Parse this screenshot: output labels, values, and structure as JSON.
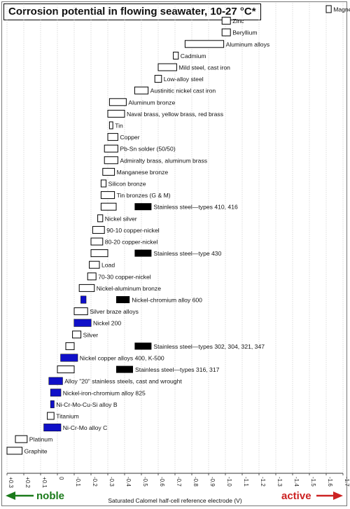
{
  "chart_data": {
    "type": "range-bar",
    "title": "Corrosion potential in flowing seawater, 10-27 °C*",
    "xlabel": "Saturated Calomel half-cell reference electrode (V)",
    "xlim": [
      0.3,
      -1.7
    ],
    "xticks": [
      "+0.3",
      "+0.2",
      "+0.1",
      "0",
      "-0.1",
      "-0.2",
      "-0.3",
      "-0.4",
      "-0.5",
      "-0.6",
      "-0.7",
      "-0.8",
      "-0.9",
      "-1.0",
      "-1.1",
      "-1.2",
      "-1.3",
      "-1.4",
      "-1.5",
      "-1.6",
      "-1.7"
    ],
    "direction_labels": {
      "noble": "noble",
      "active": "active"
    },
    "colors": {
      "passive_pitting": "#1010c8",
      "active_stainless": "#000000",
      "noble_arrow": "#1a7a1a",
      "active_arrow": "#cc2222",
      "outline": "#000000"
    },
    "series": [
      {
        "label": "Magnesium",
        "range": [
          -1.6,
          -1.63
        ]
      },
      {
        "label": "Zinc",
        "range": [
          -0.98,
          -1.03
        ]
      },
      {
        "label": "Beryllium",
        "range": [
          -0.98,
          -1.03
        ]
      },
      {
        "label": "Aluminum alloys",
        "range": [
          -0.76,
          -0.99
        ]
      },
      {
        "label": "Cadmium",
        "range": [
          -0.69,
          -0.72
        ]
      },
      {
        "label": "Mild steel, cast iron",
        "range": [
          -0.6,
          -0.71
        ]
      },
      {
        "label": "Low-alloy steel",
        "range": [
          -0.58,
          -0.62
        ]
      },
      {
        "label": "Austinitic nickel cast iron",
        "range": [
          -0.46,
          -0.54
        ]
      },
      {
        "label": "Aluminum bronze",
        "range": [
          -0.31,
          -0.41
        ]
      },
      {
        "label": "Naval brass, yellow brass, red brass",
        "range": [
          -0.3,
          -0.4
        ]
      },
      {
        "label": "Tin",
        "range": [
          -0.31,
          -0.33
        ]
      },
      {
        "label": "Copper",
        "range": [
          -0.3,
          -0.36
        ]
      },
      {
        "label": "Pb-Sn solder (50/50)",
        "range": [
          -0.28,
          -0.36
        ]
      },
      {
        "label": "Admiralty brass, aluminum brass",
        "range": [
          -0.28,
          -0.36
        ]
      },
      {
        "label": "Manganese bronze",
        "range": [
          -0.27,
          -0.34
        ]
      },
      {
        "label": "Silicon bronze",
        "range": [
          -0.26,
          -0.29
        ]
      },
      {
        "label": "Tin bronzes (G & M)",
        "range": [
          -0.26,
          -0.34
        ]
      },
      {
        "label": "Stainless steel—types 410, 416",
        "range": [
          -0.26,
          -0.35
        ],
        "active_range": [
          -0.46,
          -0.56
        ]
      },
      {
        "label": "Nickel silver",
        "range": [
          -0.24,
          -0.27
        ]
      },
      {
        "label": "90-10 copper-nickel",
        "range": [
          -0.21,
          -0.28
        ]
      },
      {
        "label": "80-20 copper-nickel",
        "range": [
          -0.2,
          -0.27
        ]
      },
      {
        "label": "Stainless steel—type 430",
        "range": [
          -0.2,
          -0.3
        ],
        "active_range": [
          -0.46,
          -0.56
        ]
      },
      {
        "label": "Load",
        "range": [
          -0.19,
          -0.25
        ]
      },
      {
        "label": "70-30 copper-nickel",
        "range": [
          -0.18,
          -0.23
        ]
      },
      {
        "label": "Nickel-aluminum bronze",
        "range": [
          -0.13,
          -0.22
        ]
      },
      {
        "label": "Nickel-chromium alloy 600",
        "range": [
          -0.14,
          -0.17
        ],
        "active_range": [
          -0.35,
          -0.43
        ],
        "passive_range": [
          -0.14,
          -0.17
        ]
      },
      {
        "label": "Silver braze alloys",
        "range": [
          -0.1,
          -0.18
        ]
      },
      {
        "label": "Nickel 200",
        "range": [
          -0.1,
          -0.2
        ],
        "passive_range": [
          -0.1,
          -0.2
        ]
      },
      {
        "label": "Silver",
        "range": [
          -0.09,
          -0.14
        ]
      },
      {
        "label": "Stainless steel—types 302, 304, 321, 347",
        "range": [
          -0.05,
          -0.1
        ],
        "active_range": [
          -0.46,
          -0.56
        ]
      },
      {
        "label": "Nickel copper alloys 400, K-500",
        "range": [
          -0.02,
          -0.12
        ],
        "passive_range": [
          -0.02,
          -0.12
        ]
      },
      {
        "label": "Stainless steel—types 316, 317",
        "range": [
          0.0,
          -0.1
        ],
        "active_range": [
          -0.35,
          -0.45
        ]
      },
      {
        "label": "Alloy \"20\" stainless steels, cast and wrought",
        "range": [
          0.05,
          -0.03
        ],
        "passive_range": [
          0.05,
          -0.03
        ]
      },
      {
        "label": "Nickel-iron-chromium alloy 825",
        "range": [
          0.04,
          -0.02
        ],
        "passive_range": [
          0.04,
          -0.02
        ]
      },
      {
        "label": "Ni-Cr-Mo-Cu-Si alloy B",
        "range": [
          0.04,
          0.02
        ],
        "passive_range": [
          0.04,
          0.02
        ]
      },
      {
        "label": "Titanium",
        "range": [
          0.06,
          0.02
        ]
      },
      {
        "label": "Ni-Cr-Mo alloy C",
        "range": [
          0.08,
          -0.02
        ],
        "passive_range": [
          0.08,
          -0.02
        ]
      },
      {
        "label": "Platinum",
        "range": [
          0.25,
          0.18
        ]
      },
      {
        "label": "Graphite",
        "range": [
          0.3,
          0.21
        ]
      }
    ]
  }
}
